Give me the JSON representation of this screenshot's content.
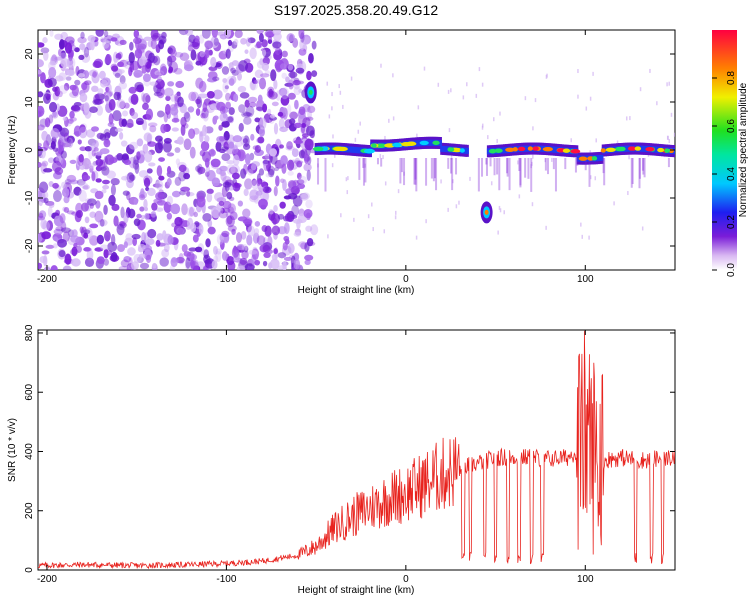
{
  "chart_data": [
    {
      "type": "heatmap",
      "title": "S197.2025.358.20.49.G12",
      "xlabel": "Height of straight line (km)",
      "ylabel": "Frequency (Hz)",
      "xlim": [
        -205,
        150
      ],
      "ylim": [
        -25,
        25
      ],
      "xticks": [
        -200,
        -100,
        0,
        100
      ],
      "yticks": [
        -20,
        -10,
        0,
        10,
        20
      ],
      "colorbar": {
        "label": "Normalized spectral amplitude",
        "range": [
          0,
          1
        ],
        "ticks": [
          0.0,
          0.2,
          0.4,
          0.6,
          0.8
        ]
      },
      "regions": [
        {
          "label": "noise",
          "x_range": [
            -205,
            -55
          ],
          "f_range": [
            -25,
            25
          ]
        },
        {
          "label": "signal",
          "x_range": [
            -50,
            150
          ],
          "f": 0
        },
        {
          "label": "spike",
          "x": -53,
          "f": 12
        },
        {
          "label": "spike",
          "x": 45,
          "f": -13
        }
      ]
    },
    {
      "type": "line",
      "xlabel": "Height of straight line (km)",
      "ylabel": "SNR (10 * v/v)",
      "xlim": [
        -205,
        150
      ],
      "ylim": [
        0,
        810
      ],
      "xticks": [
        -200,
        -100,
        0,
        100
      ],
      "yticks": [
        0,
        200,
        400,
        600,
        800
      ],
      "series": [
        {
          "name": "SNR",
          "color": "#e8231e",
          "x": [
            -205,
            -180,
            -150,
            -120,
            -100,
            -80,
            -60,
            -50,
            -40,
            -30,
            -20,
            -10,
            0,
            10,
            20,
            30,
            40,
            50,
            60,
            70,
            80,
            90,
            95,
            100,
            105,
            110,
            120,
            130,
            140,
            150
          ],
          "values": [
            15,
            18,
            15,
            18,
            22,
            30,
            50,
            80,
            140,
            180,
            210,
            240,
            260,
            290,
            320,
            345,
            360,
            380,
            380,
            380,
            375,
            380,
            400,
            480,
            390,
            370,
            380,
            370,
            375,
            380
          ]
        }
      ]
    }
  ]
}
